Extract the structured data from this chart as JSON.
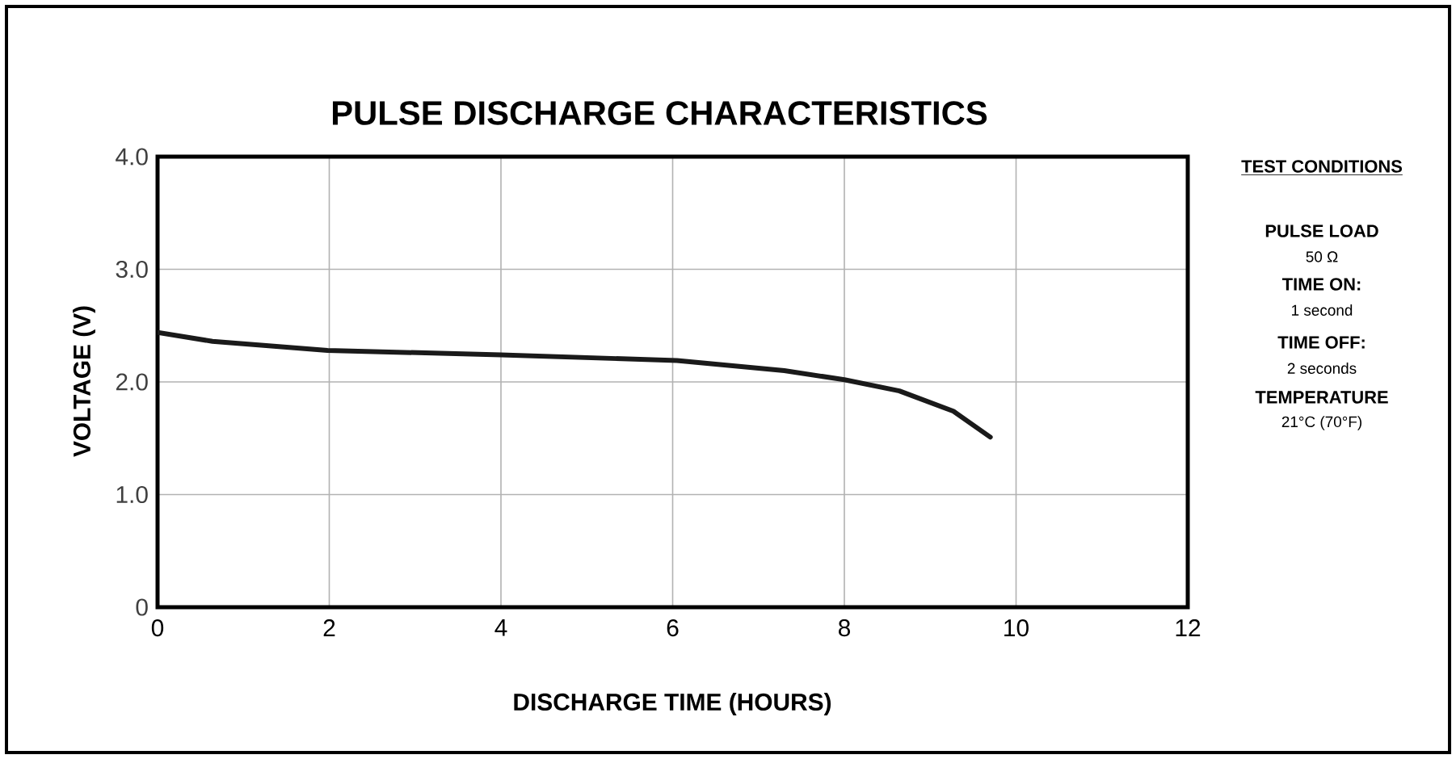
{
  "chart_data": {
    "type": "line",
    "title": "PULSE DISCHARGE CHARACTERISTICS",
    "xlabel": "DISCHARGE TIME (HOURS)",
    "ylabel": "VOLTAGE (V)",
    "x": [
      0,
      0.64,
      1.98,
      4.0,
      6.05,
      7.3,
      8.0,
      8.64,
      9.27,
      9.7
    ],
    "series": [
      {
        "color": "#1a1a1a",
        "values": [
          2.44,
          2.36,
          2.28,
          2.24,
          2.19,
          2.1,
          2.02,
          1.92,
          1.74,
          1.51
        ]
      }
    ],
    "xlim": [
      0,
      12
    ],
    "ylim": [
      0,
      4
    ],
    "xticks": [
      0,
      2,
      4,
      6,
      8,
      10,
      12
    ],
    "yticks": [
      0,
      {
        "value": 1,
        "label": "1.0"
      },
      {
        "value": 2,
        "label": "2.0"
      },
      {
        "value": 3,
        "label": "3.0"
      },
      {
        "value": 4,
        "label": "4.0"
      }
    ],
    "grid": true,
    "marker": "none",
    "line_style": "solid",
    "annotations": [
      "TEST CONDITIONS",
      "PULSE LOAD",
      "50 Ω",
      "TIME ON:",
      "1 second",
      "TIME OFF:",
      "2 seconds",
      "TEMPERATURE",
      "21°C (70°F)"
    ]
  }
}
